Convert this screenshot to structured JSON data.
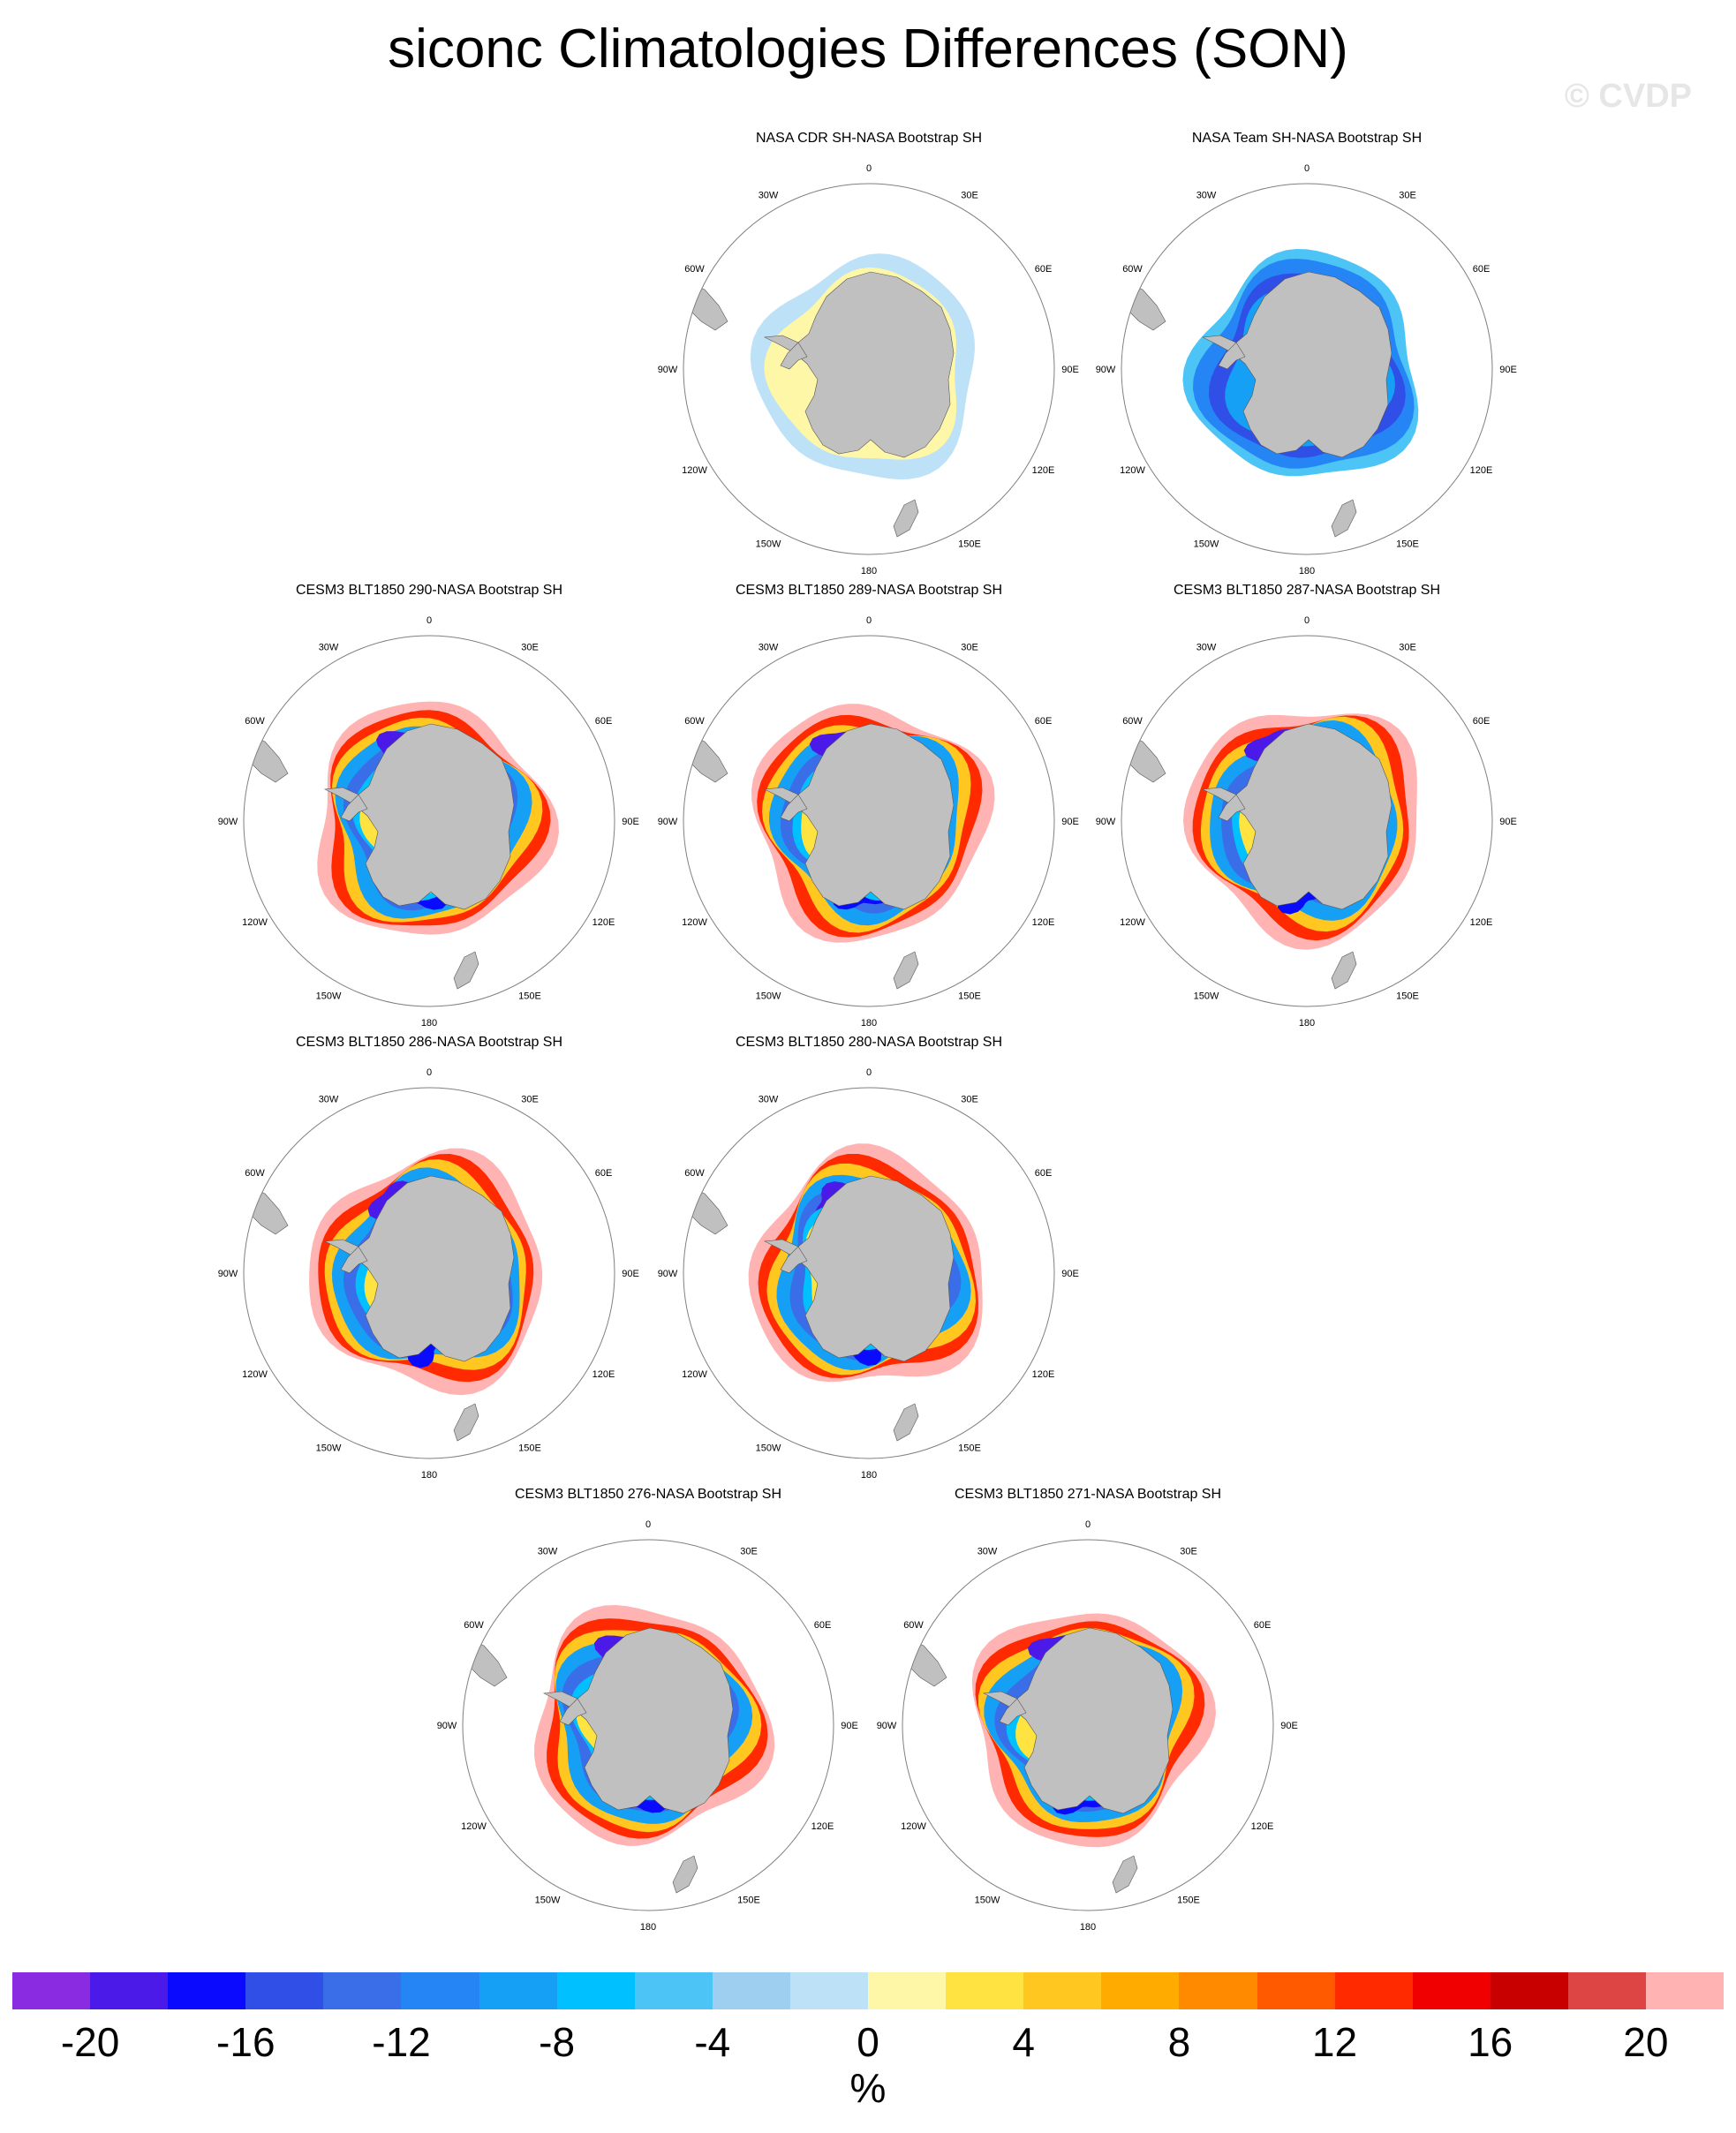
{
  "title": "siconc Climatologies Differences (SON)",
  "watermark": "© CVDP",
  "units": "%",
  "lon_labels": [
    "0",
    "30E",
    "60E",
    "90E",
    "120E",
    "150E",
    "180",
    "150W",
    "120W",
    "90W",
    "60W",
    "30W"
  ],
  "panels": [
    {
      "title": "NASA CDR SH-NASA Bootstrap SH",
      "pattern": "cdr"
    },
    {
      "title": "NASA Team SH-NASA Bootstrap SH",
      "pattern": "team"
    },
    {
      "title": "CESM3 BLT1850 290-NASA Bootstrap SH",
      "pattern": "model"
    },
    {
      "title": "CESM3 BLT1850 289-NASA Bootstrap SH",
      "pattern": "model"
    },
    {
      "title": "CESM3 BLT1850 287-NASA Bootstrap SH",
      "pattern": "model"
    },
    {
      "title": "CESM3 BLT1850 286-NASA Bootstrap SH",
      "pattern": "model"
    },
    {
      "title": "CESM3 BLT1850 280-NASA Bootstrap SH",
      "pattern": "model"
    },
    {
      "title": "CESM3 BLT1850 276-NASA Bootstrap SH",
      "pattern": "model"
    },
    {
      "title": "CESM3 BLT1850 271-NASA Bootstrap SH",
      "pattern": "model"
    }
  ],
  "colorbar": {
    "colors": [
      "#8a2be2",
      "#4b1ae8",
      "#0a0aff",
      "#2f4fe6",
      "#3a6ee8",
      "#2585f5",
      "#16a0f5",
      "#00c0ff",
      "#4cc4f5",
      "#9ecff0",
      "#bde2f7",
      "#fff7a8",
      "#ffe340",
      "#ffc71f",
      "#ffab00",
      "#ff8a00",
      "#ff5a00",
      "#ff2a00",
      "#f00000",
      "#c90000",
      "#dd4444",
      "#ffb3b3"
    ],
    "tick_labels": [
      "-20",
      "-16",
      "-12",
      "-8",
      "-4",
      "0",
      "4",
      "8",
      "12",
      "16",
      "20"
    ]
  },
  "colors": {
    "land": "#c0c0c0",
    "ocean": "#ffffff",
    "circle_stroke": "#808080"
  }
}
